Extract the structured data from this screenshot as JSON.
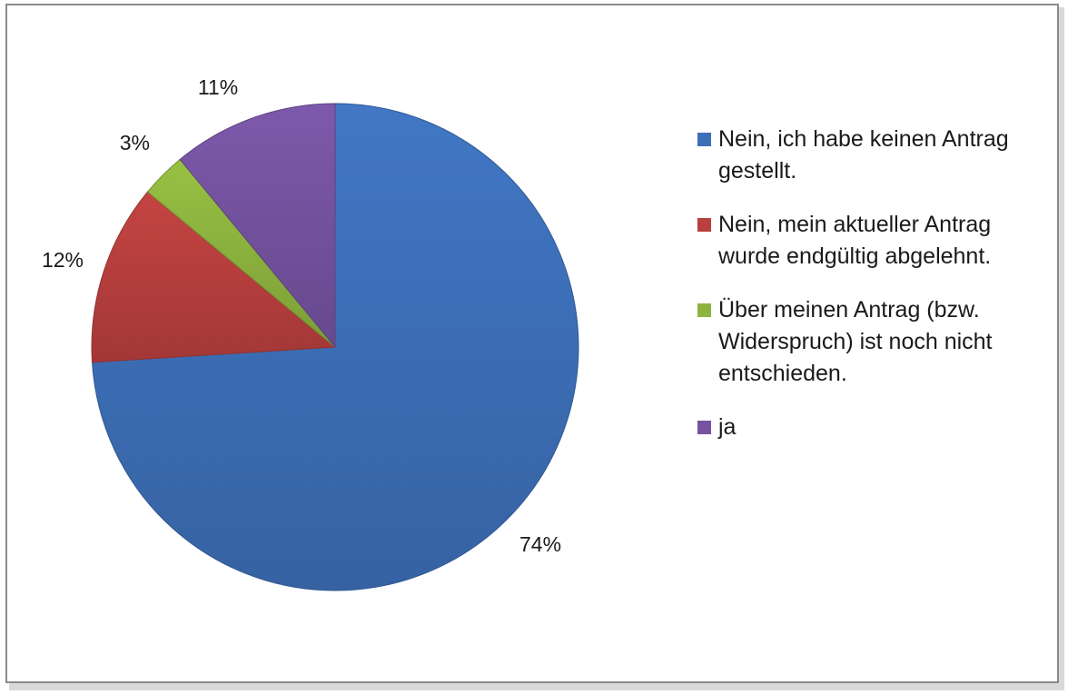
{
  "chart_data": {
    "type": "pie",
    "title": "",
    "slices": [
      {
        "label": "Nein, ich habe keinen Antrag gestellt.",
        "value": 74,
        "display": "74%",
        "color": "#3d6fb8"
      },
      {
        "label": "Nein, mein aktueller Antrag wurde endgültig abgelehnt.",
        "value": 12,
        "display": "12%",
        "color": "#b8403e"
      },
      {
        "label": "Über meinen Antrag (bzw. Widerspruch) ist noch nicht entschieden.",
        "value": 3,
        "display": "3%",
        "color": "#8db43f"
      },
      {
        "label": "ja",
        "value": 11,
        "display": "11%",
        "color": "#7553a0"
      }
    ],
    "start_angle": "12 o'clock",
    "direction": "clockwise",
    "legend_position": "right"
  }
}
